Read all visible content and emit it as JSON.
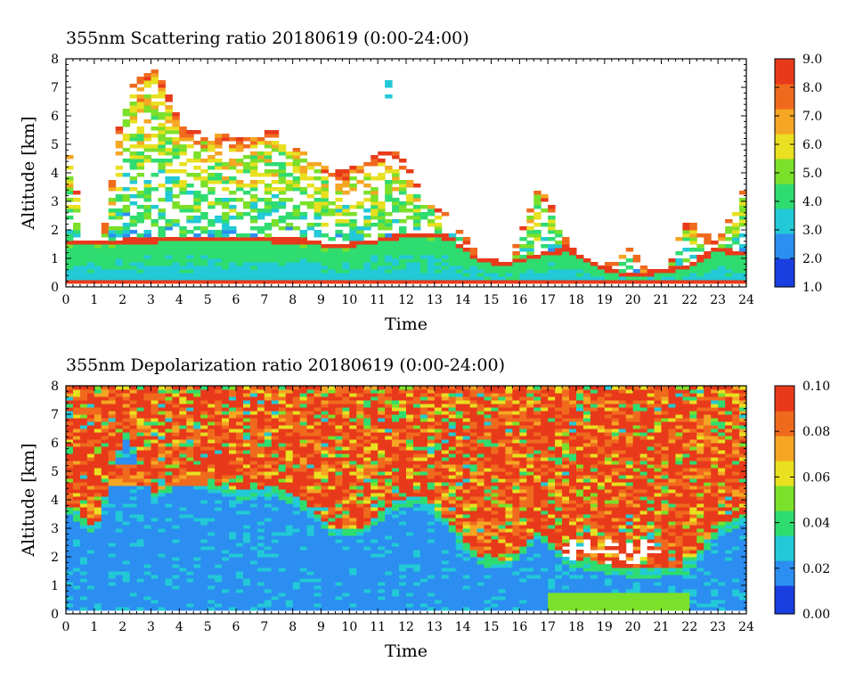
{
  "chart_data": [
    {
      "type": "heatmap",
      "title": "355nm Scattering ratio  20180619 (0:00-24:00)",
      "xlabel": "Time",
      "ylabel": "Altitude [km]",
      "xlim": [
        0,
        24
      ],
      "ylim": [
        0,
        8
      ],
      "x_ticks": [
        "0",
        "1",
        "2",
        "3",
        "4",
        "5",
        "6",
        "7",
        "8",
        "9",
        "10",
        "11",
        "12",
        "13",
        "14",
        "15",
        "16",
        "17",
        "18",
        "19",
        "20",
        "21",
        "22",
        "23",
        "24"
      ],
      "y_ticks": [
        "0",
        "1",
        "2",
        "3",
        "4",
        "5",
        "6",
        "7",
        "8"
      ],
      "colorbar": {
        "range": [
          1.0,
          9.0
        ],
        "ticks": [
          "1.0",
          "2.0",
          "3.0",
          "4.0",
          "5.0",
          "6.0",
          "7.0",
          "8.0",
          "9.0"
        ],
        "colors": [
          "#1a3fe0",
          "#2b8ef0",
          "#22c9d6",
          "#2fdc70",
          "#7be02a",
          "#e8e020",
          "#f5a623",
          "#f06a1e",
          "#e83a1a"
        ]
      },
      "features": {
        "aerosol_layer_top_km": [
          1.6,
          1.6,
          1.7,
          1.7,
          1.8,
          1.8,
          1.8,
          1.7,
          1.7,
          1.5,
          1.6,
          1.8,
          1.9,
          1.8,
          1.0,
          0.9,
          1.2,
          1.4,
          0.8,
          0.5,
          0.6,
          0.8,
          1.4,
          1.2
        ],
        "cloud_top_km": [
          5.4,
          0,
          7.0,
          7.8,
          5.5,
          5.4,
          5.2,
          5.6,
          4.9,
          4.0,
          4.3,
          5.0,
          3.6,
          2.6,
          1.0,
          0.8,
          3.8,
          1.5,
          0.5,
          1.5,
          0,
          2.5,
          1.5,
          3.8
        ],
        "ground_line_km": 0.2
      }
    },
    {
      "type": "heatmap",
      "title": "355nm Depolarization ratio  20180619 (0:00-24:00)",
      "xlabel": "Time",
      "ylabel": "Altitude [km]",
      "xlim": [
        0,
        24
      ],
      "ylim": [
        0,
        8
      ],
      "x_ticks": [
        "0",
        "1",
        "2",
        "3",
        "4",
        "5",
        "6",
        "7",
        "8",
        "9",
        "10",
        "11",
        "12",
        "13",
        "14",
        "15",
        "16",
        "17",
        "18",
        "19",
        "20",
        "21",
        "22",
        "23",
        "24"
      ],
      "y_ticks": [
        "0",
        "1",
        "2",
        "3",
        "4",
        "5",
        "6",
        "7",
        "8"
      ],
      "colorbar": {
        "range": [
          0.0,
          0.1
        ],
        "ticks": [
          "0.00",
          "0.02",
          "0.04",
          "0.06",
          "0.08",
          "0.10"
        ],
        "colors": [
          "#1a3fe0",
          "#2b8ef0",
          "#22c9d6",
          "#2fdc70",
          "#7be02a",
          "#e8e020",
          "#f5a623",
          "#f06a1e",
          "#e83a1a"
        ]
      },
      "features": {
        "low_depol_top_km": [
          3.9,
          3.0,
          6.5,
          4.2,
          5.0,
          4.6,
          4.3,
          4.5,
          4.0,
          3.0,
          3.0,
          3.9,
          4.2,
          3.2,
          2.0,
          1.9,
          3.0,
          1.9,
          1.8,
          1.6,
          1.6,
          1.7,
          3.0,
          3.5
        ],
        "enhanced_layer_km": [
          4.5,
          5.2
        ]
      }
    }
  ]
}
